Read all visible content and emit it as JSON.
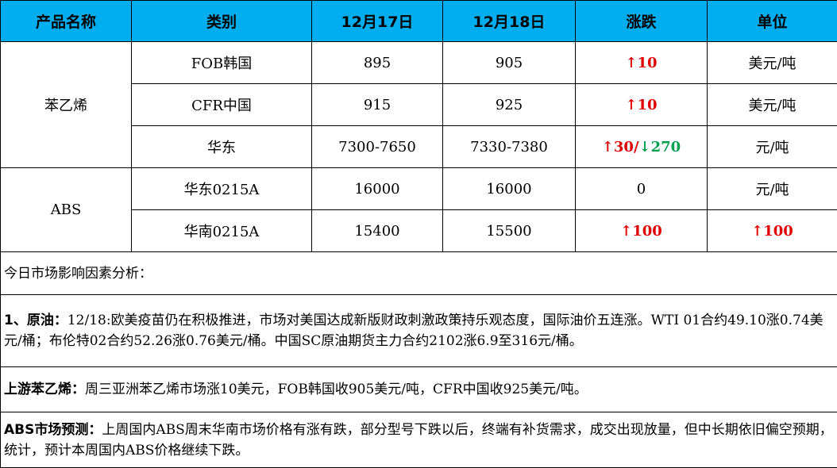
{
  "headers": [
    "产品名称",
    "类别",
    "12月17日",
    "12月18日",
    "涨跌",
    "单位"
  ],
  "groups": [
    {
      "name": "苯乙烯",
      "rows": [
        {
          "category": "FOB韩国",
          "d17": "895",
          "d18": "905",
          "change": [
            {
              "dir": "up",
              "text": "10"
            }
          ],
          "unit": "美元/吨"
        },
        {
          "category": "CFR中国",
          "d17": "915",
          "d18": "925",
          "change": [
            {
              "dir": "up",
              "text": "10"
            }
          ],
          "unit": "美元/吨"
        },
        {
          "category": "华东",
          "d17": "7300-7650",
          "d18": "7330-7380",
          "change": [
            {
              "dir": "up",
              "text": "30/"
            },
            {
              "dir": "down",
              "text": "270"
            }
          ],
          "unit": "元/吨"
        }
      ]
    },
    {
      "name": "ABS",
      "rows": [
        {
          "category": "华东0215A",
          "d17": "16000",
          "d18": "16000",
          "change": [
            {
              "dir": "none",
              "text": "0"
            }
          ],
          "unit": "元/吨"
        },
        {
          "category": "华南0215A",
          "d17": "15400",
          "d18": "15500",
          "change": [
            {
              "dir": "up",
              "text": "100"
            }
          ],
          "unit": "↑100"
        }
      ]
    }
  ],
  "analysis_title": "今日市场影响因素分析：",
  "notes": [
    {
      "label": "1、原油：",
      "text": "12/18:欧美疫苗仍在积极推进，市场对美国达成新版财政刺激政策持乐观态度，国际油价五连涨。WTI 01合约49.10涨0.74美元/桶；布伦特02合约52.26涨0.76美元/桶。中国SC原油期货主力合约2102涨6.9至316元/桶。"
    },
    {
      "label": "上游苯乙烯：",
      "text": "周三亚洲苯乙烯市场涨10美元，FOB韩国收905美元/吨，CFR中国收925美元/吨。"
    },
    {
      "label": "ABS市场预测：",
      "text": "上周国内ABS周末华南市场价格有涨有跌，部分型号下跌以后，终端有补货需求，成交出现放量，但中长期依旧偏空预期，统计，预计本周国内ABS价格继续下跌。"
    }
  ],
  "colors": {
    "header": "#00aeef",
    "up": "#e00000",
    "down": "#00a050"
  }
}
